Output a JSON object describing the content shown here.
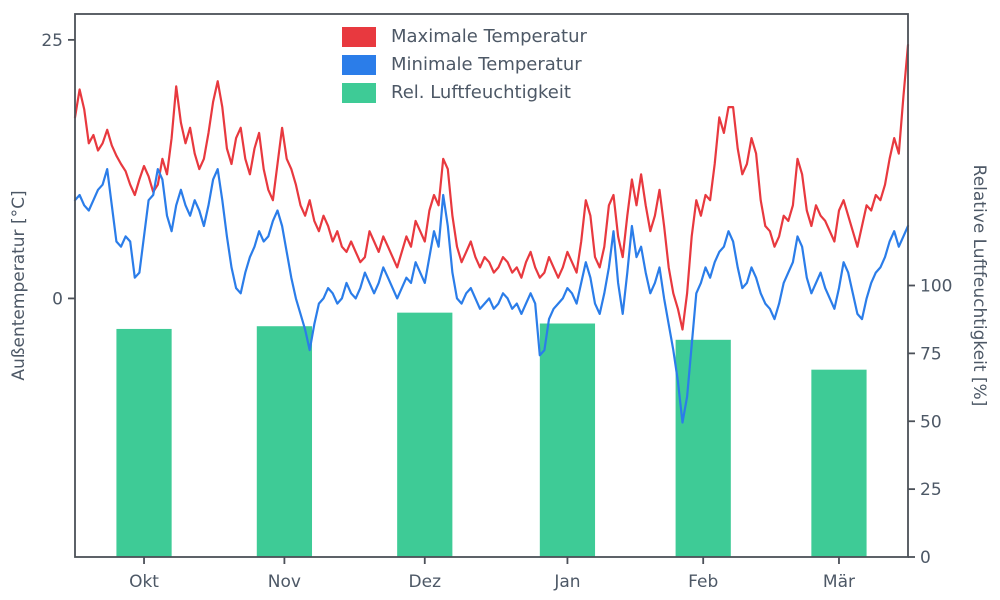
{
  "colors": {
    "max_temp": "#e8393f",
    "min_temp": "#2b7de9",
    "humidity": "#3ecb96",
    "axis_text": "#4d5866",
    "spine": "#4b5058",
    "background": "#ffffff"
  },
  "chart_data": {
    "type": "line+bar",
    "title": "",
    "left_axis": {
      "label": "Außentemperatur [°C]",
      "ticks": [
        0,
        25
      ],
      "range": [
        -25,
        27.5
      ]
    },
    "right_axis": {
      "label": "Relative Luftfeuchtigkeit [%]",
      "ticks": [
        0,
        25,
        50,
        75,
        100
      ],
      "range": [
        0,
        200
      ]
    },
    "x_axis": {
      "month_labels": [
        "Okt",
        "Nov",
        "Dez",
        "Jan",
        "Feb",
        "Mär"
      ],
      "month_centers_day": [
        15,
        45.5,
        76,
        107,
        136.5,
        166
      ],
      "days_total": 182,
      "bar_width_days": 12
    },
    "legend": {
      "position": "top-center",
      "entries": [
        "Maximale Temperatur",
        "Minimale Temperatur",
        "Rel. Luftfeuchtigkeit"
      ]
    },
    "series": [
      {
        "name": "Maximale Temperatur",
        "type": "line",
        "axis": "left",
        "color": "#e8393f",
        "values": [
          17.5,
          20.2,
          18.3,
          15.0,
          15.8,
          14.3,
          15.0,
          16.3,
          14.8,
          13.8,
          13.0,
          12.3,
          11.0,
          10.0,
          11.5,
          12.8,
          11.8,
          10.3,
          11.0,
          13.5,
          12.0,
          15.5,
          20.5,
          17.0,
          15.0,
          16.5,
          14.0,
          12.5,
          13.5,
          16.0,
          19.0,
          21.0,
          18.5,
          14.5,
          13.0,
          15.5,
          16.5,
          13.5,
          12.0,
          14.5,
          16.0,
          12.5,
          10.5,
          9.5,
          13.0,
          16.5,
          13.5,
          12.5,
          11.0,
          9.0,
          8.0,
          9.5,
          7.5,
          6.5,
          8.0,
          7.0,
          5.5,
          6.5,
          5.0,
          4.5,
          5.5,
          4.5,
          3.5,
          4.0,
          6.5,
          5.5,
          4.5,
          6.0,
          5.0,
          4.0,
          3.0,
          4.5,
          6.0,
          5.0,
          7.5,
          6.5,
          5.5,
          8.5,
          10.0,
          9.0,
          13.5,
          12.5,
          8.0,
          5.0,
          3.5,
          4.5,
          5.5,
          4.0,
          3.0,
          4.0,
          3.5,
          2.5,
          3.0,
          4.0,
          3.5,
          2.5,
          3.0,
          2.0,
          3.5,
          4.5,
          3.0,
          2.0,
          2.5,
          4.0,
          3.0,
          2.0,
          3.0,
          4.5,
          3.5,
          2.5,
          5.5,
          9.5,
          8.0,
          4.0,
          3.0,
          5.0,
          9.0,
          10.0,
          6.0,
          4.0,
          8.0,
          11.5,
          9.0,
          12.0,
          9.0,
          6.5,
          8.0,
          10.5,
          7.0,
          3.0,
          0.5,
          -1.0,
          -3.0,
          0.5,
          6.0,
          9.5,
          8.0,
          10.0,
          9.5,
          13.0,
          17.5,
          16.0,
          18.5,
          18.5,
          14.5,
          12.0,
          13.0,
          15.5,
          14.0,
          9.5,
          7.0,
          6.5,
          5.0,
          6.0,
          8.0,
          7.5,
          9.0,
          13.5,
          12.0,
          8.5,
          7.0,
          9.0,
          8.0,
          7.5,
          6.5,
          5.5,
          8.5,
          9.5,
          8.0,
          6.5,
          5.0,
          7.0,
          9.0,
          8.5,
          10.0,
          9.5,
          11.0,
          13.5,
          15.5,
          14.0,
          19.5,
          24.5
        ]
      },
      {
        "name": "Minimale Temperatur",
        "type": "line",
        "axis": "left",
        "color": "#2b7de9",
        "values": [
          9.5,
          10.0,
          9.0,
          8.5,
          9.5,
          10.5,
          11.0,
          12.5,
          9.0,
          5.5,
          5.0,
          6.0,
          5.5,
          2.0,
          2.5,
          6.0,
          9.5,
          10.0,
          12.5,
          11.5,
          8.0,
          6.5,
          9.0,
          10.5,
          9.0,
          8.0,
          9.5,
          8.5,
          7.0,
          9.0,
          11.5,
          12.5,
          9.5,
          6.0,
          3.0,
          1.0,
          0.5,
          2.5,
          4.0,
          5.0,
          6.5,
          5.5,
          6.0,
          7.5,
          8.5,
          7.0,
          4.5,
          2.0,
          0.0,
          -1.5,
          -3.0,
          -5.0,
          -2.5,
          -0.5,
          0.0,
          1.0,
          0.5,
          -0.5,
          0.0,
          1.5,
          0.5,
          0.0,
          1.0,
          2.5,
          1.5,
          0.5,
          1.5,
          3.0,
          2.0,
          1.0,
          0.0,
          1.0,
          2.0,
          1.5,
          3.5,
          2.5,
          1.5,
          4.0,
          6.5,
          5.0,
          10.0,
          7.0,
          2.5,
          0.0,
          -0.5,
          0.5,
          1.0,
          0.0,
          -1.0,
          -0.5,
          0.0,
          -1.0,
          -0.5,
          0.5,
          0.0,
          -1.0,
          -0.5,
          -1.5,
          -0.5,
          0.5,
          -0.5,
          -5.5,
          -5.0,
          -2.0,
          -1.0,
          -0.5,
          0.0,
          1.0,
          0.5,
          -0.5,
          1.5,
          3.5,
          2.0,
          -0.5,
          -1.5,
          0.5,
          3.0,
          6.5,
          1.5,
          -1.5,
          2.5,
          7.0,
          4.0,
          5.0,
          2.5,
          0.5,
          1.5,
          3.0,
          0.0,
          -2.5,
          -5.0,
          -8.0,
          -12.0,
          -9.5,
          -4.5,
          0.5,
          1.5,
          3.0,
          2.0,
          3.5,
          4.5,
          5.0,
          6.5,
          5.5,
          3.0,
          1.0,
          1.5,
          3.0,
          2.0,
          0.5,
          -0.5,
          -1.0,
          -2.0,
          -0.5,
          1.5,
          2.5,
          3.5,
          6.0,
          5.0,
          2.0,
          0.5,
          1.5,
          2.5,
          1.0,
          0.0,
          -1.0,
          1.0,
          3.5,
          2.5,
          0.5,
          -1.5,
          -2.0,
          0.0,
          1.5,
          2.5,
          3.0,
          4.0,
          5.5,
          6.5,
          5.0,
          6.0,
          7.0
        ]
      },
      {
        "name": "Rel. Luftfeuchtigkeit",
        "type": "bar",
        "axis": "right",
        "color": "#3ecb96",
        "values": [
          84,
          85,
          90,
          86,
          80,
          69
        ]
      }
    ]
  }
}
